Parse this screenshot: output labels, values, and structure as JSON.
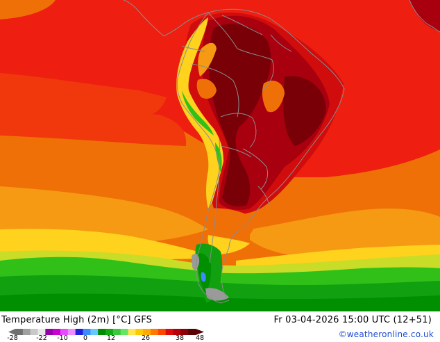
{
  "map": {
    "region": "South America",
    "variable": "Temperature High (2m)",
    "palette": {
      "hot_darkest": "#7a0008",
      "hot_dark": "#a8000f",
      "hot": "#d00c0c",
      "red": "#ee1e10",
      "red_orange": "#f0380c",
      "orange": "#f07008",
      "orange_light": "#f59a12",
      "yellow": "#ffd21e",
      "yellow_green": "#c8dc28",
      "green_light": "#30c018",
      "green": "#10a010",
      "green_dark": "#008f00",
      "cold_blue": "#3c8cff",
      "grey": "#9a9a9a",
      "border": "#8c8c8c"
    }
  },
  "footer": {
    "title": "Temperature High (2m) [°C] GFS",
    "datetime": "Fr 03-04-2026 15:00 UTC (12+51)",
    "credit": "©weatheronline.co.uk"
  },
  "scale": {
    "ticks": [
      "-28",
      "-22",
      "-10",
      "0",
      "12",
      "26",
      "38",
      "48"
    ],
    "swatches": [
      "#707070",
      "#a0a0a0",
      "#c8c8c8",
      "#e8e8e8",
      "#9600aa",
      "#c800d2",
      "#e64bff",
      "#f08cff",
      "#1e1edc",
      "#3c8cff",
      "#64c8ff",
      "#008c00",
      "#14aa14",
      "#3cc83c",
      "#64e664",
      "#ffe650",
      "#ffc800",
      "#ffaa00",
      "#ff7800",
      "#ff4600",
      "#dc0a0a",
      "#b4000a",
      "#8c0008",
      "#5a0005"
    ]
  }
}
